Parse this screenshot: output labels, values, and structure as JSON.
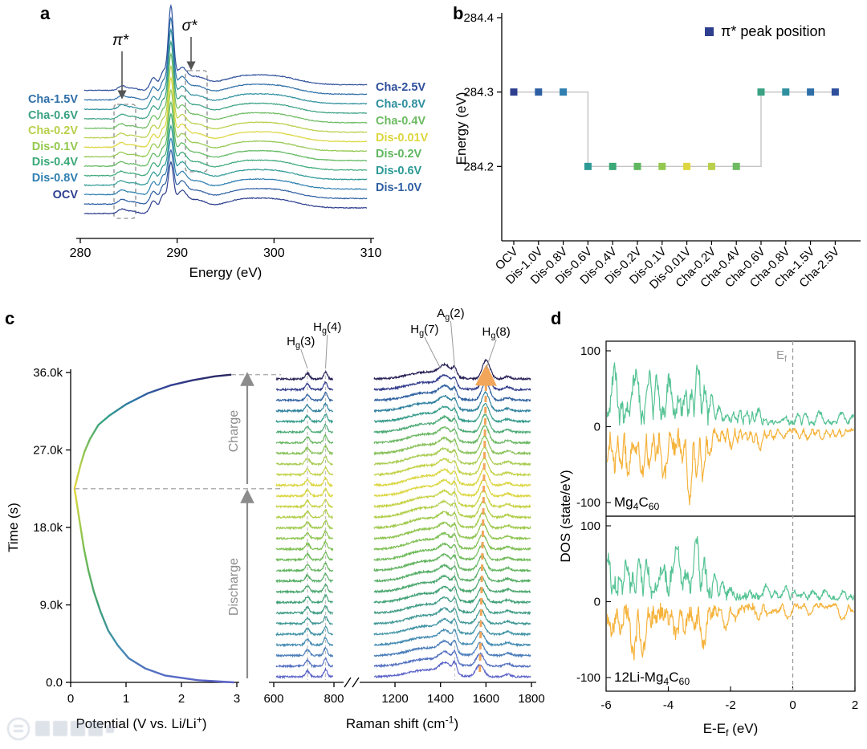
{
  "figure": {
    "bg": "#ffffff",
    "panels": {
      "a": "a",
      "b": "b",
      "c": "c",
      "d": "d"
    },
    "watermark_present": true
  },
  "categories": [
    {
      "label": "OCV",
      "color": "#2e3f8f"
    },
    {
      "label": "Dis-1.0V",
      "color": "#2e5fa3"
    },
    {
      "label": "Dis-0.8V",
      "color": "#2f7fb0"
    },
    {
      "label": "Dis-0.6V",
      "color": "#2e9a96"
    },
    {
      "label": "Dis-0.4V",
      "color": "#3aa877"
    },
    {
      "label": "Dis-0.2V",
      "color": "#5fb75f"
    },
    {
      "label": "Dis-0.1V",
      "color": "#93c84f"
    },
    {
      "label": "Dis-0.01V",
      "color": "#ddd63e"
    },
    {
      "label": "Cha-0.2V",
      "color": "#b8d04a"
    },
    {
      "label": "Cha-0.4V",
      "color": "#6cbb61"
    },
    {
      "label": "Cha-0.6V",
      "color": "#3aa183"
    },
    {
      "label": "Cha-0.8V",
      "color": "#2e8f9e"
    },
    {
      "label": "Cha-1.5V",
      "color": "#2e6fa8"
    },
    {
      "label": "Cha-2.5V",
      "color": "#2e4f9b"
    }
  ],
  "chart_data": {
    "panel_a": {
      "type": "line",
      "xlabel": "Energy (eV)",
      "xlim": [
        280,
        310
      ],
      "xticks": [
        280,
        290,
        300,
        310
      ],
      "stack_order": [
        "OCV",
        "Dis-1.0V",
        "Dis-0.8V",
        "Dis-0.6V",
        "Dis-0.4V",
        "Dis-0.2V",
        "Dis-0.1V",
        "Dis-0.01V",
        "Cha-0.2V",
        "Cha-0.4V",
        "Cha-0.6V",
        "Cha-0.8V",
        "Cha-1.5V",
        "Cha-2.5V"
      ],
      "left_labels": [
        "Cha-1.5V",
        "Cha-0.6V",
        "Cha-0.2V",
        "Dis-0.1V",
        "Dis-0.4V",
        "Dis-0.8V",
        "OCV"
      ],
      "right_labels": [
        "Cha-2.5V",
        "Cha-0.8V",
        "Cha-0.4V",
        "Dis-0.01V",
        "Dis-0.2V",
        "Dis-0.6V",
        "Dis-1.0V"
      ],
      "annotations": [
        {
          "text": "π*",
          "x_ev": 284.4
        },
        {
          "text": "σ*",
          "x_ev": 291.6
        }
      ],
      "pi_star_positions": {
        "pristine_charged": 284.3,
        "discharged": 284.2
      },
      "peaks": [
        [
          284.3,
          0.38,
          5.5
        ],
        [
          285.35,
          0.5,
          3
        ],
        [
          287.55,
          0.33,
          15
        ],
        [
          288.55,
          0.3,
          19
        ],
        [
          289.35,
          0.27,
          55
        ],
        [
          290.45,
          0.5,
          19
        ],
        [
          291.95,
          0.95,
          10
        ],
        [
          296.3,
          1.7,
          7
        ],
        [
          299.9,
          2.4,
          11
        ]
      ],
      "spike_amp_slope": 3.2,
      "edge_jump": [
        288.4,
        0.9,
        3.5
      ],
      "box_color": "#a0a0a0"
    },
    "panel_b": {
      "type": "scatter",
      "legend": "π* peak position",
      "legend_marker_color": "#2e3f8f",
      "ylabel": "Energy (eV)",
      "ylim": [
        284.1,
        284.4
      ],
      "yticks": [
        284.4,
        284.3,
        284.2
      ],
      "values": [
        284.3,
        284.3,
        284.3,
        284.2,
        284.2,
        284.2,
        284.2,
        284.2,
        284.2,
        284.2,
        284.3,
        284.3,
        284.3,
        284.3
      ],
      "step_line_color": "#c4c4c4"
    },
    "panel_c_potential": {
      "type": "line",
      "xlabel_rich": [
        [
          "Potential (V vs. Li/Li",
          null
        ],
        [
          "+",
          "sup"
        ],
        [
          ")",
          null
        ]
      ],
      "ylabel": "Time (s)",
      "xlim": [
        0,
        3
      ],
      "xticks": [
        0,
        1,
        2,
        3
      ],
      "ytick_labels": [
        "0.0",
        "9.0k",
        "18.0k",
        "27.0k",
        "36.0k"
      ],
      "ytick_values": [
        0,
        9000,
        18000,
        27000,
        36000
      ],
      "discharge_points": [
        [
          2.95,
          0
        ],
        [
          2.3,
          250
        ],
        [
          1.7,
          800
        ],
        [
          1.35,
          1600
        ],
        [
          1.05,
          2800
        ],
        [
          0.85,
          4300
        ],
        [
          0.68,
          6000
        ],
        [
          0.54,
          8200
        ],
        [
          0.42,
          10500
        ],
        [
          0.32,
          13000
        ],
        [
          0.24,
          15500
        ],
        [
          0.18,
          18000
        ],
        [
          0.13,
          20000
        ],
        [
          0.1,
          21300
        ],
        [
          0.08,
          22100
        ],
        [
          0.07,
          22500
        ]
      ],
      "charge_points": [
        [
          0.07,
          22500
        ],
        [
          0.12,
          23800
        ],
        [
          0.18,
          25300
        ],
        [
          0.25,
          26800
        ],
        [
          0.35,
          28300
        ],
        [
          0.5,
          29900
        ],
        [
          0.7,
          31000
        ],
        [
          1.0,
          32300
        ],
        [
          1.4,
          33600
        ],
        [
          1.8,
          34500
        ],
        [
          2.2,
          35100
        ],
        [
          2.6,
          35550
        ],
        [
          2.9,
          35750
        ]
      ],
      "guides_time": [
        22500,
        35750
      ],
      "arrow_labels": [
        {
          "label": "Charge"
        },
        {
          "label": "Discharge"
        }
      ],
      "arrow_color": "#8c8c8c",
      "guide_color": "#b0b0b0"
    },
    "panel_c_raman": {
      "type": "line",
      "xlabel_rich": [
        [
          "Raman shift (cm",
          null
        ],
        [
          "-1",
          "sup"
        ],
        [
          ")",
          null
        ]
      ],
      "xticks": [
        600,
        800,
        1200,
        1400,
        1600,
        1800
      ],
      "axis_break": [
        800,
        1100
      ],
      "n_curves": 29,
      "mode_labels": [
        {
          "rich": [
            [
              "H",
              null
            ],
            [
              "g",
              "sub"
            ],
            [
              "(3)",
              null
            ]
          ],
          "label_x": 690,
          "guide_x": 712
        },
        {
          "rich": [
            [
              "H",
              null
            ],
            [
              "g",
              "sub"
            ],
            [
              "(4)",
              null
            ]
          ],
          "label_x": 778,
          "guide_x": 772
        },
        {
          "rich": [
            [
              "H",
              null
            ],
            [
              "g",
              "sub"
            ],
            [
              "(7)",
              null
            ]
          ],
          "label_x": 1330,
          "guide_x": 1400
        },
        {
          "rich": [
            [
              "A",
              null
            ],
            [
              "g",
              "sub"
            ],
            [
              "(2)",
              null
            ]
          ],
          "label_x": 1445,
          "guide_x": 1463
        },
        {
          "rich": [
            [
              "H",
              null
            ],
            [
              "g",
              "sub"
            ],
            [
              "(8)",
              null
            ]
          ],
          "label_x": 1645,
          "guide_x": 1601
        }
      ],
      "dashed_guides": [
        712,
        772,
        1463
      ],
      "hg8_shift": {
        "from": 1573,
        "to": 1601
      },
      "peaks": [
        [
          712,
          7,
          7
        ],
        [
          772,
          6,
          9
        ],
        [
          1338,
          78,
          8.5
        ],
        [
          1422,
          26,
          13
        ],
        [
          1463,
          9,
          12.5
        ],
        [
          1695,
          14,
          3
        ]
      ],
      "hg8_peak": {
        "w": 17,
        "a": 15
      },
      "arrow_color": "#f2a65a",
      "colormap_anchors": [
        [
          0,
          "#5b63c8"
        ],
        [
          0.12,
          "#3f8fae"
        ],
        [
          0.25,
          "#3fa076"
        ],
        [
          0.4,
          "#6fbb55"
        ],
        [
          0.52,
          "#a8cc4a"
        ],
        [
          0.625,
          "#e5d83e"
        ],
        [
          0.7,
          "#b5d04d"
        ],
        [
          0.78,
          "#6db85e"
        ],
        [
          0.85,
          "#35a087"
        ],
        [
          0.91,
          "#2d74a8"
        ],
        [
          0.96,
          "#333f93"
        ],
        [
          1,
          "#262055"
        ]
      ]
    },
    "panel_d": {
      "type": "line",
      "ylabel": "DOS (state/eV)",
      "xlabel_rich": [
        [
          "E-E",
          null
        ],
        [
          "f",
          "sub"
        ],
        [
          " (eV)",
          null
        ]
      ],
      "fermi_rich": [
        [
          "E",
          null
        ],
        [
          "f",
          "sub"
        ]
      ],
      "xlim": [
        -6,
        2
      ],
      "xticks": [
        -6,
        -4,
        -2,
        0,
        2
      ],
      "yticks": [
        100,
        0,
        -100
      ],
      "ylim": [
        -120,
        120
      ],
      "subpanels": [
        {
          "label_rich": [
            [
              "Mg",
              null
            ],
            [
              "4",
              "sub"
            ],
            [
              "C",
              null
            ],
            [
              "60",
              "sub"
            ]
          ],
          "seeds": [
            11,
            12
          ]
        },
        {
          "label_rich": [
            [
              "12Li-Mg",
              null
            ],
            [
              "4",
              "sub"
            ],
            [
              "C",
              null
            ],
            [
              "60",
              "sub"
            ]
          ],
          "seeds": [
            21,
            22
          ]
        }
      ],
      "series_colors": {
        "spin_up": "#55c394",
        "spin_down": "#f5b33c"
      },
      "envelope": [
        [
          -6,
          -2.6,
          72
        ],
        [
          -2.6,
          -1.0,
          34
        ],
        [
          -1.0,
          2,
          18
        ]
      ],
      "fermi_line_color": "#999999"
    }
  }
}
